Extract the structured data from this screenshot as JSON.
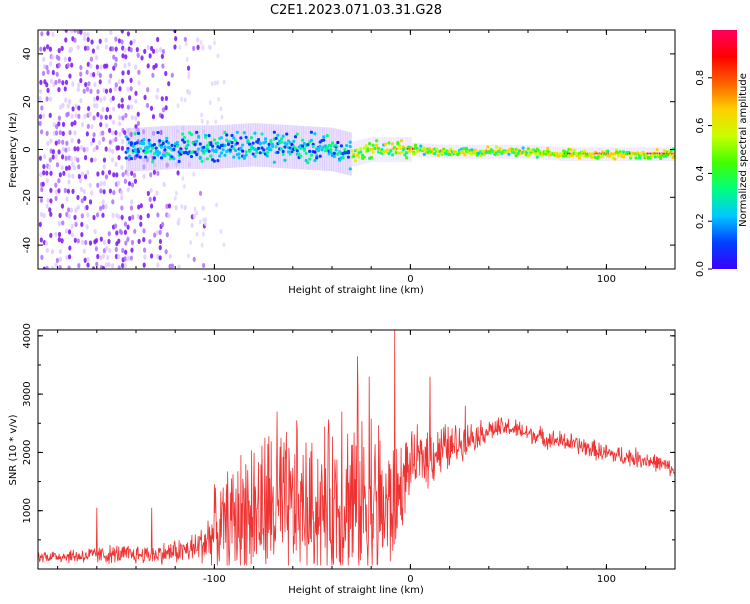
{
  "title": "C2E1.2023.071.03.31.G28",
  "chart_data": [
    {
      "type": "heatmap",
      "title": "C2E1.2023.071.03.31.G28",
      "xlabel": "Height of straight line (km)",
      "ylabel": "Frequency (Hz)",
      "xlim": [
        -190,
        135
      ],
      "ylim": [
        -50,
        50
      ],
      "xticks": [
        -100,
        0,
        100
      ],
      "xtick_labels": [
        "-100",
        "0",
        "100"
      ],
      "yticks": [
        -40,
        -20,
        0,
        20,
        40
      ],
      "ytick_labels": [
        "-40",
        "-20",
        "0",
        "20",
        "40"
      ],
      "grid": false,
      "ridge": {
        "x": [
          -140,
          -120,
          -100,
          -80,
          -60,
          -40,
          -30,
          -20,
          -10,
          0,
          20,
          40,
          60,
          80,
          100,
          120,
          135
        ],
        "y": [
          0,
          1,
          1,
          2,
          1,
          0,
          -2,
          0,
          0,
          0,
          -1,
          -1,
          -1,
          -2,
          -2,
          -2,
          -2
        ]
      },
      "colorbar": {
        "label": "Normalized spectral amplitude",
        "range": [
          0,
          1
        ],
        "ticks": [
          0.0,
          0.2,
          0.4,
          0.6,
          0.8
        ],
        "tick_labels": [
          "0.0",
          "0.2",
          "0.4",
          "0.6",
          "0.8"
        ],
        "colormap": [
          "#3a00ff",
          "#0040ff",
          "#00c8ff",
          "#00ff80",
          "#40ff00",
          "#c8ff00",
          "#ffd000",
          "#ff6000",
          "#ff0000",
          "#ff0060"
        ]
      }
    },
    {
      "type": "line",
      "xlabel": "Height of straight line (km)",
      "ylabel": "SNR (10 * v/v)",
      "xlim": [
        -190,
        135
      ],
      "ylim": [
        0,
        4100
      ],
      "xticks": [
        -100,
        0,
        100
      ],
      "xtick_labels": [
        "-100",
        "0",
        "100"
      ],
      "yticks": [
        1000,
        2000,
        3000,
        4000
      ],
      "ytick_labels": [
        "1000",
        "2000",
        "3000",
        "4000"
      ],
      "grid": false,
      "color": "#ee3333",
      "envelope": {
        "x": [
          -190,
          -170,
          -150,
          -130,
          -110,
          -100,
          -90,
          -80,
          -70,
          -60,
          -50,
          -40,
          -30,
          -20,
          -10,
          0,
          10,
          20,
          30,
          40,
          50,
          60,
          70,
          80,
          90,
          100,
          110,
          120,
          130,
          135
        ],
        "base": [
          200,
          200,
          220,
          220,
          300,
          500,
          700,
          750,
          800,
          800,
          850,
          900,
          900,
          850,
          800,
          1700,
          1900,
          2000,
          2200,
          2350,
          2400,
          2300,
          2200,
          2150,
          2050,
          1950,
          1900,
          1850,
          1750,
          1650
        ],
        "amp": [
          150,
          200,
          250,
          250,
          400,
          900,
          1500,
          1900,
          2000,
          1900,
          1700,
          2000,
          2400,
          2500,
          1800,
          700,
          900,
          600,
          400,
          300,
          250,
          250,
          250,
          250,
          250,
          250,
          250,
          250,
          200,
          200
        ]
      },
      "peaks": [
        {
          "x": -160,
          "y": 1050
        },
        {
          "x": -132,
          "y": 1050
        },
        {
          "x": -100,
          "y": 1450
        },
        {
          "x": -84,
          "y": 1800
        },
        {
          "x": -68,
          "y": 2700
        },
        {
          "x": -58,
          "y": 2550
        },
        {
          "x": -35,
          "y": 2700
        },
        {
          "x": -27,
          "y": 3650
        },
        {
          "x": -21,
          "y": 3300
        },
        {
          "x": -8,
          "y": 4100
        },
        {
          "x": 10,
          "y": 3300
        },
        {
          "x": 28,
          "y": 2800
        }
      ]
    }
  ]
}
